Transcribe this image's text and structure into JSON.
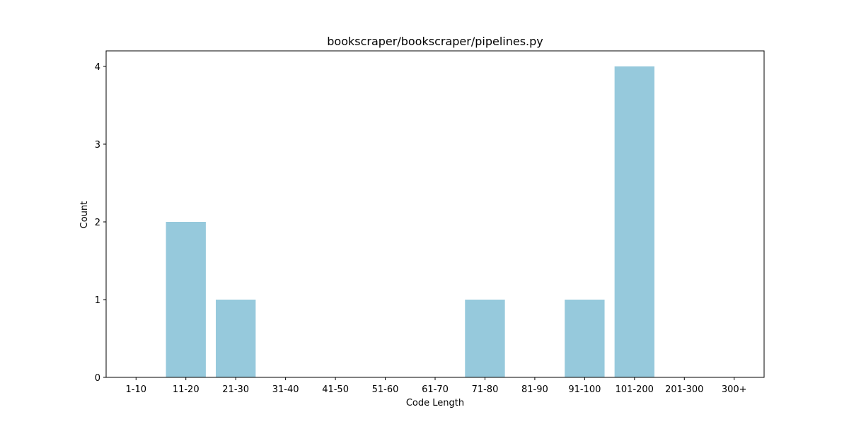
{
  "chart_data": {
    "type": "bar",
    "title": "bookscraper/bookscraper/pipelines.py",
    "xlabel": "Code Length",
    "ylabel": "Count",
    "categories": [
      "1-10",
      "11-20",
      "21-30",
      "31-40",
      "41-50",
      "51-60",
      "61-70",
      "71-80",
      "81-90",
      "91-100",
      "101-200",
      "201-300",
      "300+"
    ],
    "values": [
      0,
      2,
      1,
      0,
      0,
      0,
      0,
      1,
      0,
      1,
      4,
      0,
      0
    ],
    "ylim": [
      0,
      4.2
    ],
    "yticks": [
      0,
      1,
      2,
      3,
      4
    ],
    "grid": false,
    "bar_color": "#96c9dc"
  }
}
